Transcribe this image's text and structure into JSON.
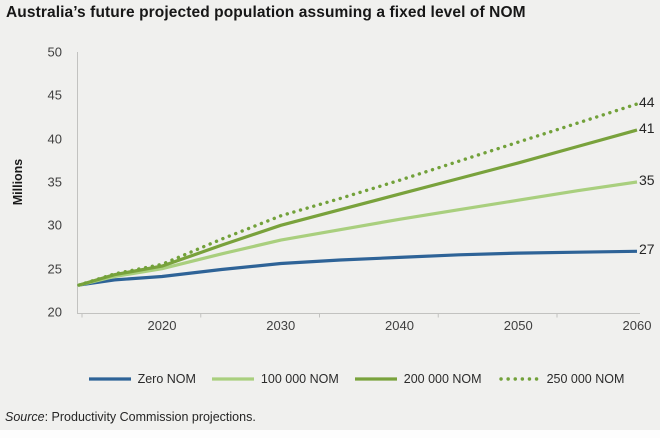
{
  "title": "Australia’s future projected population assuming a fixed level of NOM",
  "source": {
    "prefix": "Source",
    "rest": ": Productivity Commission projections."
  },
  "colors": {
    "background": "#f0f0ee",
    "axis_line": "#c2c2c0",
    "tick_text": "#404040",
    "title_text": "#171717",
    "end_label_text": "#262626"
  },
  "chart_data": {
    "type": "line",
    "title": "Australia’s future projected population assuming a fixed level of NOM",
    "xlabel": "",
    "ylabel": "Millions",
    "ylim": [
      20,
      50
    ],
    "y_ticks": [
      20,
      25,
      30,
      35,
      40,
      45,
      50
    ],
    "x_ticks": [
      2020,
      2030,
      2040,
      2050,
      2060
    ],
    "xlim": [
      2013,
      2060
    ],
    "grid": false,
    "legend_position": "bottom",
    "x": [
      2013,
      2016,
      2020,
      2025,
      2030,
      2035,
      2040,
      2045,
      2050,
      2055,
      2060
    ],
    "series": [
      {
        "name": "Zero NOM",
        "color": "#2e6397",
        "style": "solid",
        "end_label": "27",
        "values": [
          23.1,
          23.7,
          24.1,
          24.9,
          25.6,
          26.0,
          26.3,
          26.6,
          26.8,
          26.9,
          27.0
        ]
      },
      {
        "name": "100 000 NOM",
        "color": "#a9cf7e",
        "style": "solid",
        "end_label": "35",
        "values": [
          23.1,
          24.1,
          25.0,
          26.7,
          28.3,
          29.5,
          30.7,
          31.8,
          32.9,
          34.0,
          35.0
        ]
      },
      {
        "name": "200 000 NOM",
        "color": "#79a23c",
        "style": "solid",
        "end_label": "41",
        "values": [
          23.1,
          24.3,
          25.3,
          27.7,
          30.0,
          31.8,
          33.6,
          35.4,
          37.2,
          39.1,
          41.0
        ]
      },
      {
        "name": "250 000 NOM",
        "color": "#72a13a",
        "style": "dotted",
        "end_label": "44",
        "values": [
          23.1,
          24.4,
          25.5,
          28.4,
          31.1,
          33.1,
          35.2,
          37.4,
          39.6,
          41.8,
          44.0
        ]
      }
    ]
  }
}
